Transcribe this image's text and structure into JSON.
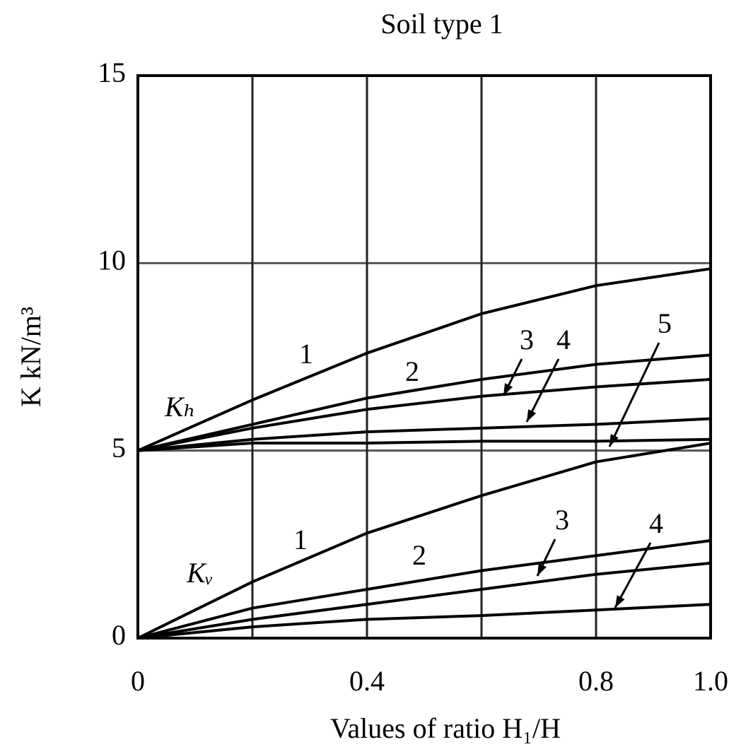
{
  "chart_data": {
    "type": "line",
    "title": "Soil type 1",
    "xlabel": "Values of ratio H₁/H",
    "ylabel": "K  kN/m³",
    "xlim": [
      0,
      1
    ],
    "ylim": [
      0,
      15
    ],
    "xticks": [
      0,
      {
        "value": 0.2,
        "label": null
      },
      0.4,
      {
        "value": 0.6,
        "label": null
      },
      0.8,
      {
        "value": 1,
        "label": "1.0"
      }
    ],
    "yticks": [
      0,
      5,
      10,
      15
    ],
    "grid": true,
    "x": [
      0,
      0.2,
      0.4,
      0.6,
      0.8,
      1
    ],
    "series": [
      {
        "name": "1",
        "color": "#000000",
        "values": [
          5,
          6.35,
          7.6,
          8.65,
          9.4,
          9.85
        ]
      },
      {
        "name": "2",
        "color": "#000000",
        "values": [
          5,
          5.7,
          6.4,
          6.9,
          7.3,
          7.55
        ]
      },
      {
        "name": "3",
        "color": "#000000",
        "values": [
          5,
          5.6,
          6.1,
          6.45,
          6.7,
          6.9
        ]
      },
      {
        "name": "4",
        "color": "#000000",
        "values": [
          5,
          5.3,
          5.5,
          5.6,
          5.7,
          5.85
        ]
      },
      {
        "name": "5",
        "color": "#000000",
        "values": [
          5,
          5.2,
          5.2,
          5.25,
          5.25,
          5.3
        ]
      },
      {
        "name": "1",
        "color": "#000000",
        "values": [
          0,
          1.5,
          2.8,
          3.8,
          4.7,
          5.2
        ]
      },
      {
        "name": "2",
        "color": "#000000",
        "values": [
          0,
          0.8,
          1.3,
          1.8,
          2.2,
          2.6
        ]
      },
      {
        "name": "3",
        "color": "#000000",
        "values": [
          0,
          0.5,
          0.9,
          1.3,
          1.7,
          2.0
        ]
      },
      {
        "name": "4",
        "color": "#000000",
        "values": [
          0,
          0.3,
          0.5,
          0.6,
          0.75,
          0.9
        ]
      }
    ],
    "annotations": [
      "Kₕ",
      "Kᵥ"
    ]
  }
}
